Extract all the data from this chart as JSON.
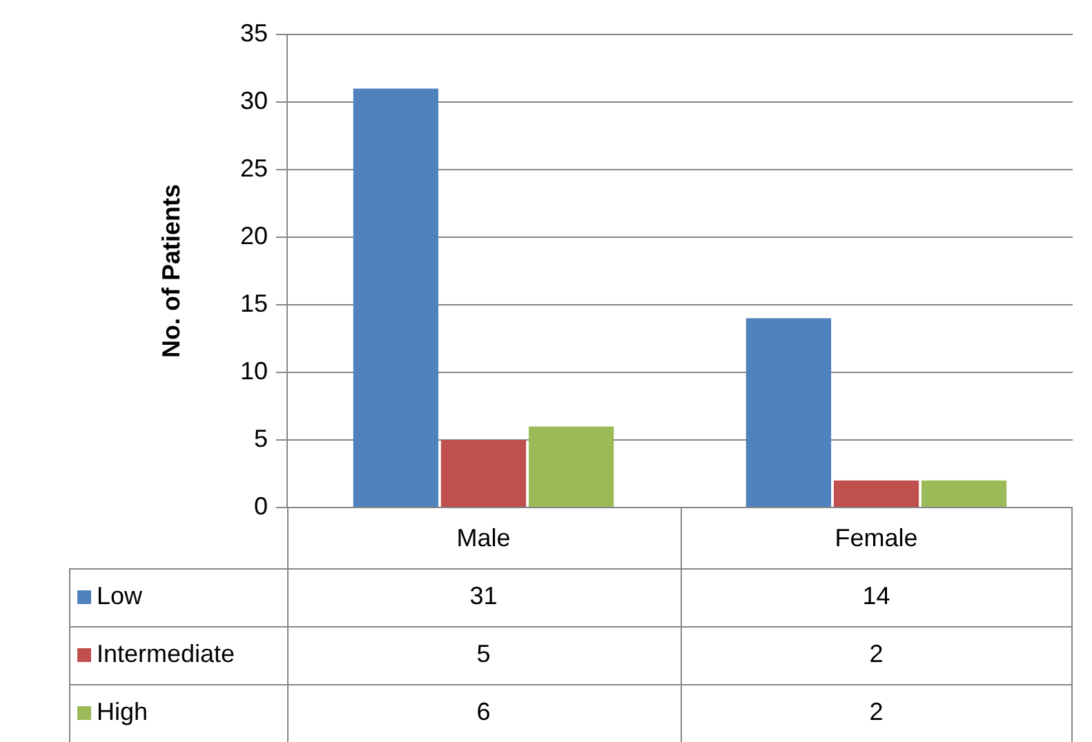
{
  "chart_data": {
    "type": "bar",
    "ylabel": "No. of Patients",
    "categories": [
      "Male",
      "Female"
    ],
    "series": [
      {
        "name": "Low",
        "color": "#4f81bd",
        "values": [
          31,
          14
        ]
      },
      {
        "name": "Intermediate",
        "color": "#c0504d",
        "values": [
          5,
          2
        ]
      },
      {
        "name": "High",
        "color": "#9bbb59",
        "values": [
          6,
          2
        ]
      }
    ],
    "ylim": [
      0,
      35
    ],
    "yticks": [
      0,
      5,
      10,
      15,
      20,
      25,
      30,
      35
    ],
    "grid": "y",
    "legend": "bottom",
    "data_labels": true
  }
}
